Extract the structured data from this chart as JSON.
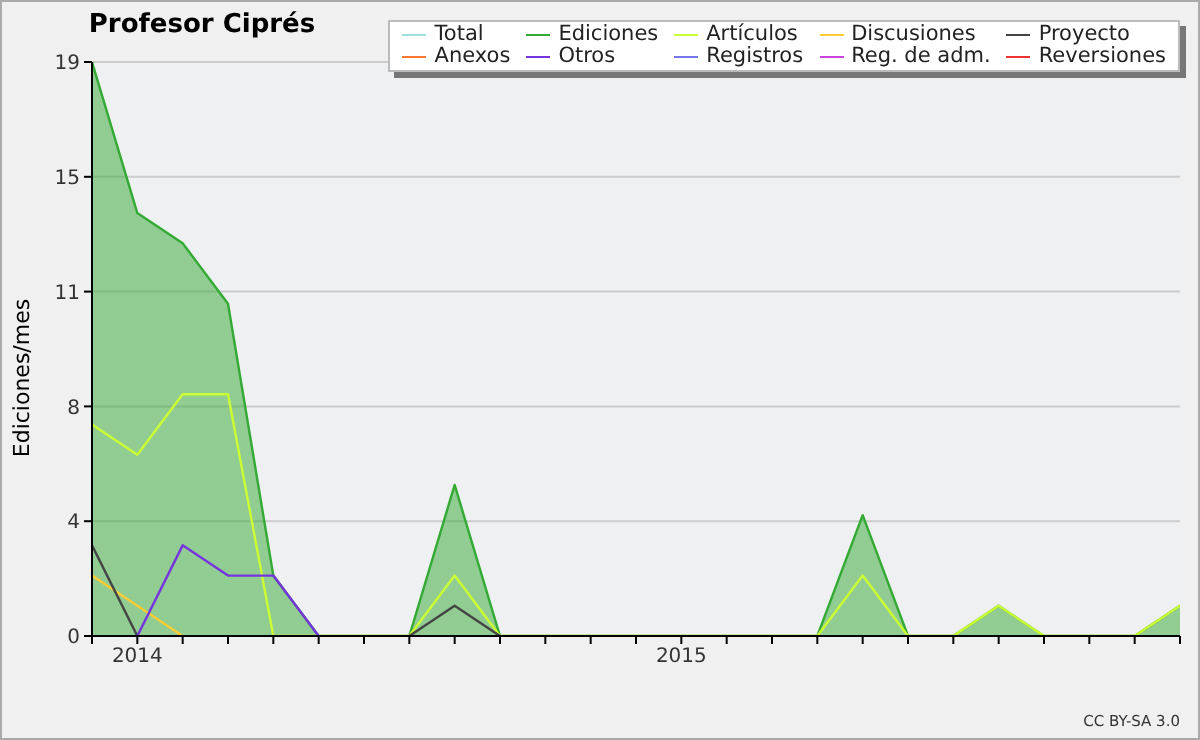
{
  "chart_data": {
    "type": "line",
    "title": "Profesor Ciprés",
    "ylabel": "Ediciones/mes",
    "x": [
      "2013-12",
      "2014-01",
      "2014-02",
      "2014-03",
      "2014-04",
      "2014-05",
      "2014-06",
      "2014-07",
      "2014-08",
      "2014-09",
      "2014-10",
      "2014-11",
      "2014-12",
      "2015-01",
      "2015-02",
      "2015-03",
      "2015-04",
      "2015-05",
      "2015-06",
      "2015-07",
      "2015-08",
      "2015-09",
      "2015-10",
      "2015-11",
      "2015-12"
    ],
    "series": [
      {
        "name": "Total",
        "color": "#a0e0e0",
        "values": [
          null,
          null,
          null,
          null,
          null,
          null,
          null,
          null,
          null,
          null,
          null,
          null,
          null,
          null,
          null,
          null,
          null,
          null,
          null,
          null,
          null,
          null,
          null,
          null,
          null
        ]
      },
      {
        "name": "Ediciones",
        "type": "area",
        "color": "#33aa33",
        "values": [
          19,
          14,
          13,
          11,
          2,
          0,
          0,
          0,
          5,
          0,
          0,
          0,
          0,
          0,
          0,
          0,
          0,
          4,
          0,
          0,
          1,
          0,
          0,
          0,
          1
        ]
      },
      {
        "name": "Artículos",
        "color": "#ccff33",
        "values": [
          7,
          6,
          8,
          8,
          0,
          0,
          0,
          0,
          2,
          0,
          0,
          0,
          0,
          0,
          0,
          0,
          0,
          2,
          0,
          0,
          1,
          0,
          0,
          0,
          1
        ]
      },
      {
        "name": "Discusiones",
        "color": "#ffcc33",
        "values": [
          2,
          1,
          0,
          null,
          null,
          null,
          null,
          null,
          null,
          null,
          null,
          null,
          null,
          null,
          null,
          null,
          null,
          null,
          null,
          null,
          null,
          null,
          null,
          null,
          null
        ]
      },
      {
        "name": "Proyecto",
        "color": "#444444",
        "values": [
          3,
          0,
          null,
          null,
          null,
          null,
          null,
          0,
          1,
          0,
          null,
          null,
          null,
          null,
          null,
          null,
          null,
          null,
          null,
          null,
          null,
          null,
          null,
          null,
          null
        ]
      },
      {
        "name": "Anexos",
        "color": "#ff7733",
        "values": [
          null,
          null,
          null,
          null,
          null,
          null,
          null,
          null,
          null,
          null,
          null,
          null,
          null,
          null,
          null,
          null,
          null,
          null,
          null,
          null,
          null,
          null,
          null,
          null,
          null
        ]
      },
      {
        "name": "Otros",
        "color": "#7733dd",
        "values": [
          null,
          0,
          3,
          2,
          2,
          0,
          null,
          null,
          null,
          null,
          null,
          null,
          null,
          null,
          null,
          null,
          null,
          null,
          null,
          null,
          null,
          null,
          null,
          null,
          null
        ]
      },
      {
        "name": "Registros",
        "color": "#7777ee",
        "values": [
          null,
          null,
          null,
          null,
          null,
          null,
          null,
          null,
          null,
          null,
          null,
          null,
          null,
          null,
          null,
          null,
          null,
          null,
          null,
          null,
          null,
          null,
          null,
          null,
          null
        ]
      },
      {
        "name": "Reg. de adm.",
        "color": "#cc44dd",
        "values": [
          null,
          null,
          null,
          null,
          null,
          null,
          null,
          null,
          null,
          null,
          null,
          null,
          null,
          null,
          null,
          null,
          null,
          null,
          null,
          null,
          null,
          null,
          null,
          null,
          null
        ]
      },
      {
        "name": "Reversiones",
        "color": "#ee3333",
        "values": [
          null,
          null,
          null,
          null,
          null,
          null,
          null,
          null,
          null,
          null,
          null,
          null,
          null,
          null,
          null,
          null,
          null,
          null,
          null,
          null,
          null,
          null,
          null,
          null,
          null
        ]
      }
    ],
    "xlim": [
      "2013-12",
      "2015-12"
    ],
    "xticks": [
      {
        "value": "2013-12",
        "label": null
      },
      {
        "value": "2014-01",
        "label": "2014"
      },
      {
        "value": "2014-02",
        "label": null
      },
      {
        "value": "2014-03",
        "label": null
      },
      {
        "value": "2014-04",
        "label": null
      },
      {
        "value": "2014-05",
        "label": null
      },
      {
        "value": "2014-06",
        "label": null
      },
      {
        "value": "2014-07",
        "label": null
      },
      {
        "value": "2014-08",
        "label": null
      },
      {
        "value": "2014-09",
        "label": null
      },
      {
        "value": "2014-10",
        "label": null
      },
      {
        "value": "2014-11",
        "label": null
      },
      {
        "value": "2014-12",
        "label": null
      },
      {
        "value": "2015-01",
        "label": "2015"
      },
      {
        "value": "2015-02",
        "label": null
      },
      {
        "value": "2015-03",
        "label": null
      },
      {
        "value": "2015-04",
        "label": null
      },
      {
        "value": "2015-05",
        "label": null
      },
      {
        "value": "2015-06",
        "label": null
      },
      {
        "value": "2015-07",
        "label": null
      },
      {
        "value": "2015-08",
        "label": null
      },
      {
        "value": "2015-09",
        "label": null
      },
      {
        "value": "2015-10",
        "label": null
      },
      {
        "value": "2015-11",
        "label": null
      },
      {
        "value": "2015-12",
        "label": null
      }
    ],
    "ylim": [
      0,
      19
    ],
    "yticks": [
      0,
      {
        "value": 3.8,
        "label": "4"
      },
      {
        "value": 7.6,
        "label": "8"
      },
      {
        "value": 11.4,
        "label": "11"
      },
      {
        "value": 15.2,
        "label": "15"
      },
      19
    ],
    "grid": "y",
    "legend": "top right",
    "marker": "none",
    "line_style": "solid",
    "annotations": [
      "CC BY-SA 3.0"
    ]
  }
}
